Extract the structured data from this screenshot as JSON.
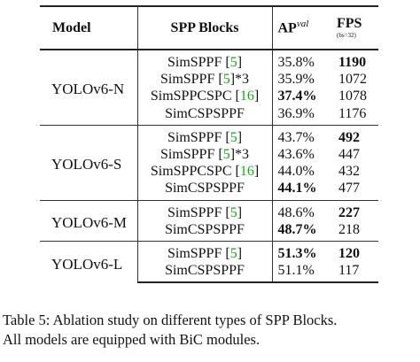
{
  "table": {
    "headers": {
      "model": "Model",
      "spp": "SPP Blocks",
      "ap": "AP",
      "ap_sup": "val",
      "fps": "FPS",
      "fps_sub": "(bs=32)"
    },
    "groups": [
      {
        "model": "YOLOv6-N",
        "rows": [
          {
            "spp_name": "SimSPPF [",
            "ref": "5",
            "suffix": "]",
            "ap": "35.8%",
            "ap_bold": false,
            "fps": "1190",
            "fps_bold": true
          },
          {
            "spp_name": "SimSPPF [",
            "ref": "5",
            "suffix": "]*3",
            "ap": "35.9%",
            "ap_bold": false,
            "fps": "1072",
            "fps_bold": false
          },
          {
            "spp_name": "SimSPPCSPC [",
            "ref": "16",
            "suffix": "]",
            "ap": "37.4%",
            "ap_bold": true,
            "fps": "1078",
            "fps_bold": false
          },
          {
            "spp_name": "SimCSPSPPF",
            "ref": "",
            "suffix": "",
            "ap": "36.9%",
            "ap_bold": false,
            "fps": "1176",
            "fps_bold": false
          }
        ]
      },
      {
        "model": "YOLOv6-S",
        "rows": [
          {
            "spp_name": "SimSPPF [",
            "ref": "5",
            "suffix": "]",
            "ap": "43.7%",
            "ap_bold": false,
            "fps": "492",
            "fps_bold": true
          },
          {
            "spp_name": "SimSPPF [",
            "ref": "5",
            "suffix": "]*3",
            "ap": "43.6%",
            "ap_bold": false,
            "fps": "447",
            "fps_bold": false
          },
          {
            "spp_name": "SimSPPCSPC [",
            "ref": "16",
            "suffix": "]",
            "ap": "44.0%",
            "ap_bold": false,
            "fps": "432",
            "fps_bold": false
          },
          {
            "spp_name": "SimCSPSPPF",
            "ref": "",
            "suffix": "",
            "ap": "44.1%",
            "ap_bold": true,
            "fps": "477",
            "fps_bold": false
          }
        ]
      },
      {
        "model": "YOLOv6-M",
        "rows": [
          {
            "spp_name": "SimSPPF [",
            "ref": "5",
            "suffix": "]",
            "ap": "48.6%",
            "ap_bold": false,
            "fps": "227",
            "fps_bold": true
          },
          {
            "spp_name": "SimCSPSPPF",
            "ref": "",
            "suffix": "",
            "ap": "48.7%",
            "ap_bold": true,
            "fps": "218",
            "fps_bold": false
          }
        ]
      },
      {
        "model": "YOLOv6-L",
        "rows": [
          {
            "spp_name": "SimSPPF [",
            "ref": "5",
            "suffix": "]",
            "ap": "51.3%",
            "ap_bold": true,
            "fps": "120",
            "fps_bold": true
          },
          {
            "spp_name": "SimCSPSPPF",
            "ref": "",
            "suffix": "",
            "ap": "51.1%",
            "ap_bold": false,
            "fps": "117",
            "fps_bold": false
          }
        ]
      }
    ]
  },
  "caption": {
    "line1": "Table 5: Ablation study on different types of SPP Blocks.",
    "line2": "All models are equipped with BiC modules."
  },
  "colors": {
    "reference_link": "#1aa51a"
  }
}
